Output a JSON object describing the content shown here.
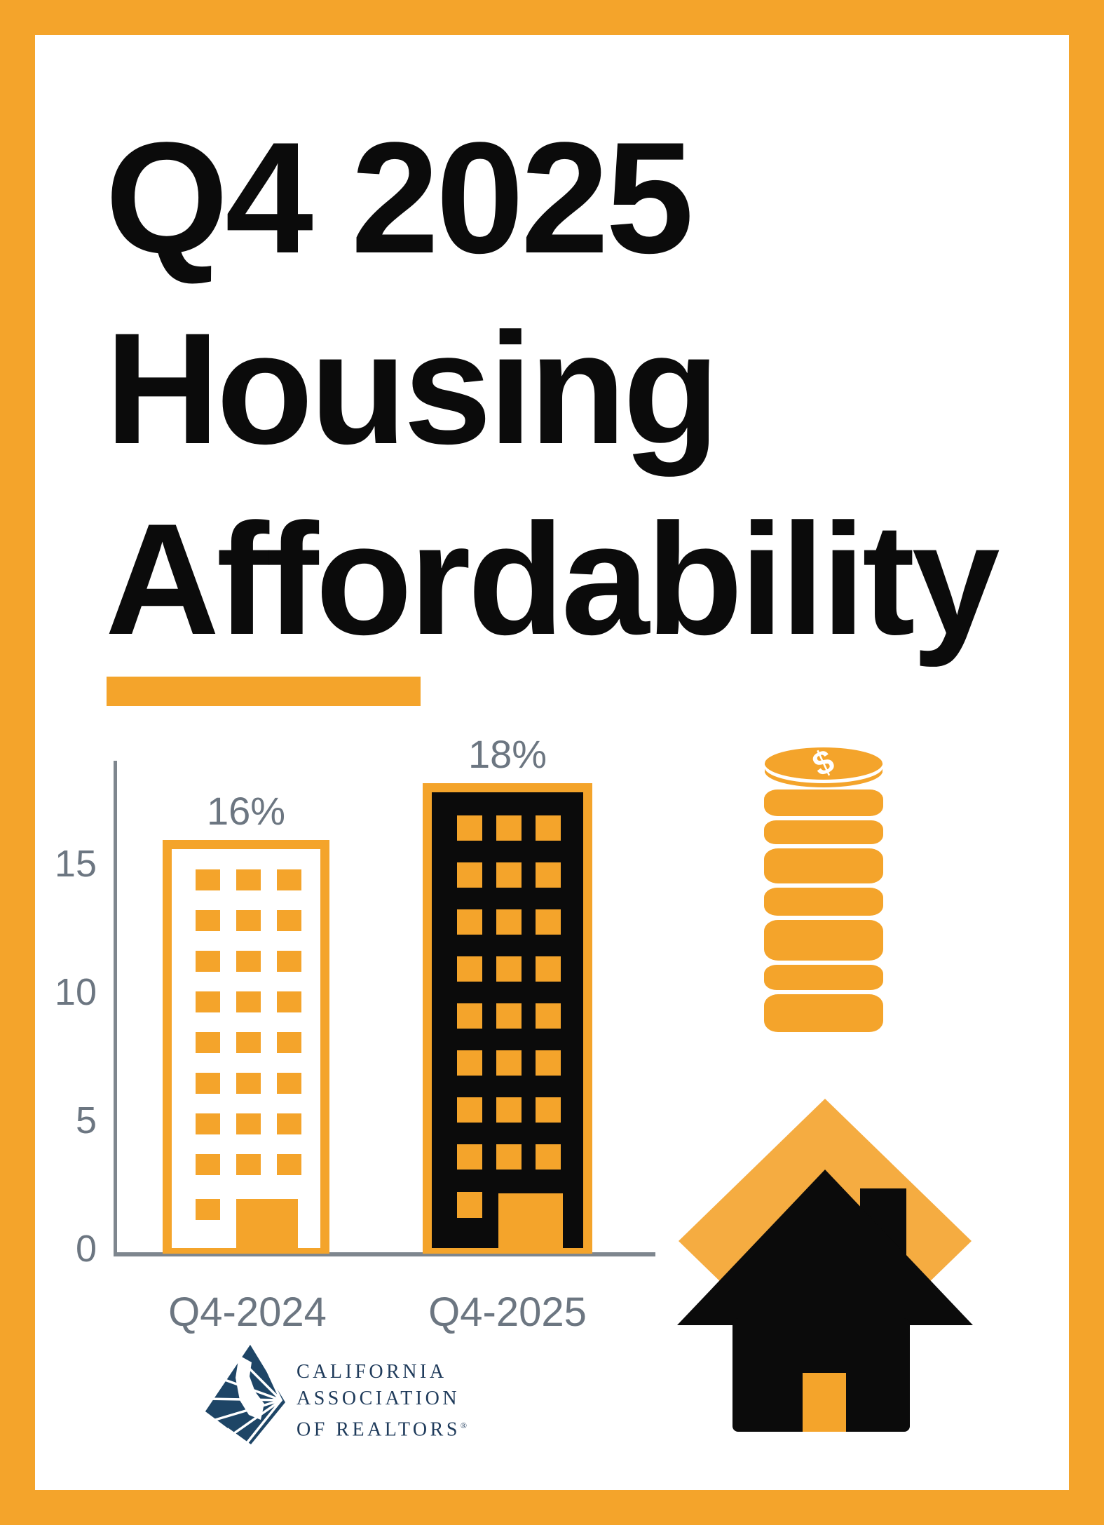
{
  "title": {
    "line1": "Q4 2025",
    "line2": "Housing",
    "line3": "Affordability"
  },
  "chart_data": {
    "type": "bar",
    "title": "",
    "xlabel": "",
    "ylabel": "",
    "categories": [
      "Q4-2024",
      "Q4-2025"
    ],
    "values": [
      16,
      18
    ],
    "value_labels": [
      "16%",
      "18%"
    ],
    "unit": "%",
    "y_ticks": [
      0,
      5,
      10,
      15
    ],
    "y_tick_labels_top_down": [
      "15",
      "10",
      "5",
      "0"
    ],
    "ylim": [
      0,
      19
    ],
    "grid": false,
    "legend": false,
    "bar_styles": [
      "outlined-building",
      "filled-building"
    ]
  },
  "icons": {
    "coin_dollar": "$",
    "coin_stack": "coin-stack-icon",
    "house": "house-icon"
  },
  "logo": {
    "line1": "CALIFORNIA",
    "line2": "ASSOCIATION",
    "line3": "OF REALTORS",
    "registered": "®"
  },
  "colors": {
    "accent": "#F4A42B",
    "accent_light": "#F5AC41",
    "ink": "#0B0B0B",
    "label_gray": "#6C7681",
    "axis_gray": "#7E868E",
    "logo_navy": "#1E4566",
    "logo_text_navy": "#1F3B5B",
    "background": "#FFFFFF"
  }
}
